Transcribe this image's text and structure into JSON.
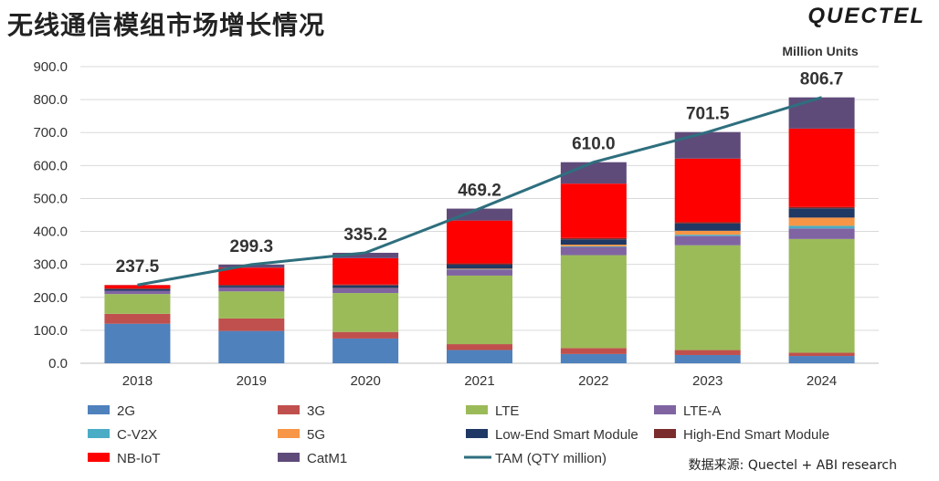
{
  "header": {
    "title": "无线通信模组市场增长情况",
    "logo_text": "QUECTEL",
    "logo_color": "#1a1a1a"
  },
  "source_note": "数据来源: Quectel + ABI  research",
  "chart_data": {
    "type": "bar",
    "stacked": true,
    "title": "无线通信模组市场增长情况",
    "unit_label": "Million Units",
    "categories": [
      "2018",
      "2019",
      "2020",
      "2021",
      "2022",
      "2023",
      "2024"
    ],
    "ylim": [
      0,
      900
    ],
    "yticks": [
      "0.0",
      "100.0",
      "200.0",
      "300.0",
      "400.0",
      "500.0",
      "600.0",
      "700.0",
      "800.0",
      "900.0"
    ],
    "grid": true,
    "series": [
      {
        "name": "2G",
        "color": "#4F81BD",
        "values": [
          120,
          98,
          75,
          40,
          28,
          25,
          22
        ]
      },
      {
        "name": "3G",
        "color": "#C0504D",
        "values": [
          30,
          38,
          20,
          18,
          18,
          15,
          10
        ]
      },
      {
        "name": "LTE",
        "color": "#9BBB59",
        "values": [
          60,
          82,
          118,
          208,
          282,
          318,
          345
        ]
      },
      {
        "name": "LTE-A",
        "color": "#8064A2",
        "values": [
          10,
          12,
          14,
          18,
          25,
          28,
          32
        ]
      },
      {
        "name": "C-V2X",
        "color": "#4BACC6",
        "values": [
          0,
          0,
          0,
          1,
          2,
          4,
          8
        ]
      },
      {
        "name": "5G",
        "color": "#F79646",
        "values": [
          0,
          0,
          1,
          2,
          5,
          12,
          25
        ]
      },
      {
        "name": "Low-End Smart Module",
        "color": "#1F3864",
        "values": [
          5,
          5,
          8,
          12,
          16,
          22,
          28
        ]
      },
      {
        "name": "High-End Smart Module",
        "color": "#7B2C2C",
        "values": [
          2,
          3,
          3,
          4,
          4,
          4,
          4
        ]
      },
      {
        "name": "NB-IoT",
        "color": "#FF0000",
        "values": [
          10,
          52,
          80,
          130,
          165,
          193,
          238
        ]
      },
      {
        "name": "CatM1",
        "color": "#5F4B7A",
        "values": [
          0.5,
          9.3,
          16.2,
          36.2,
          65,
          80.5,
          94.7
        ]
      }
    ],
    "line_series": {
      "name": "TAM (QTY million)",
      "color": "#2E6F7E",
      "values": [
        237.5,
        299.3,
        335.2,
        469.2,
        610.0,
        701.5,
        806.7
      ],
      "labels": [
        "237.5",
        "299.3",
        "335.2",
        "469.2",
        "610.0",
        "701.5",
        "806.7"
      ]
    },
    "legend_position": "bottom"
  }
}
